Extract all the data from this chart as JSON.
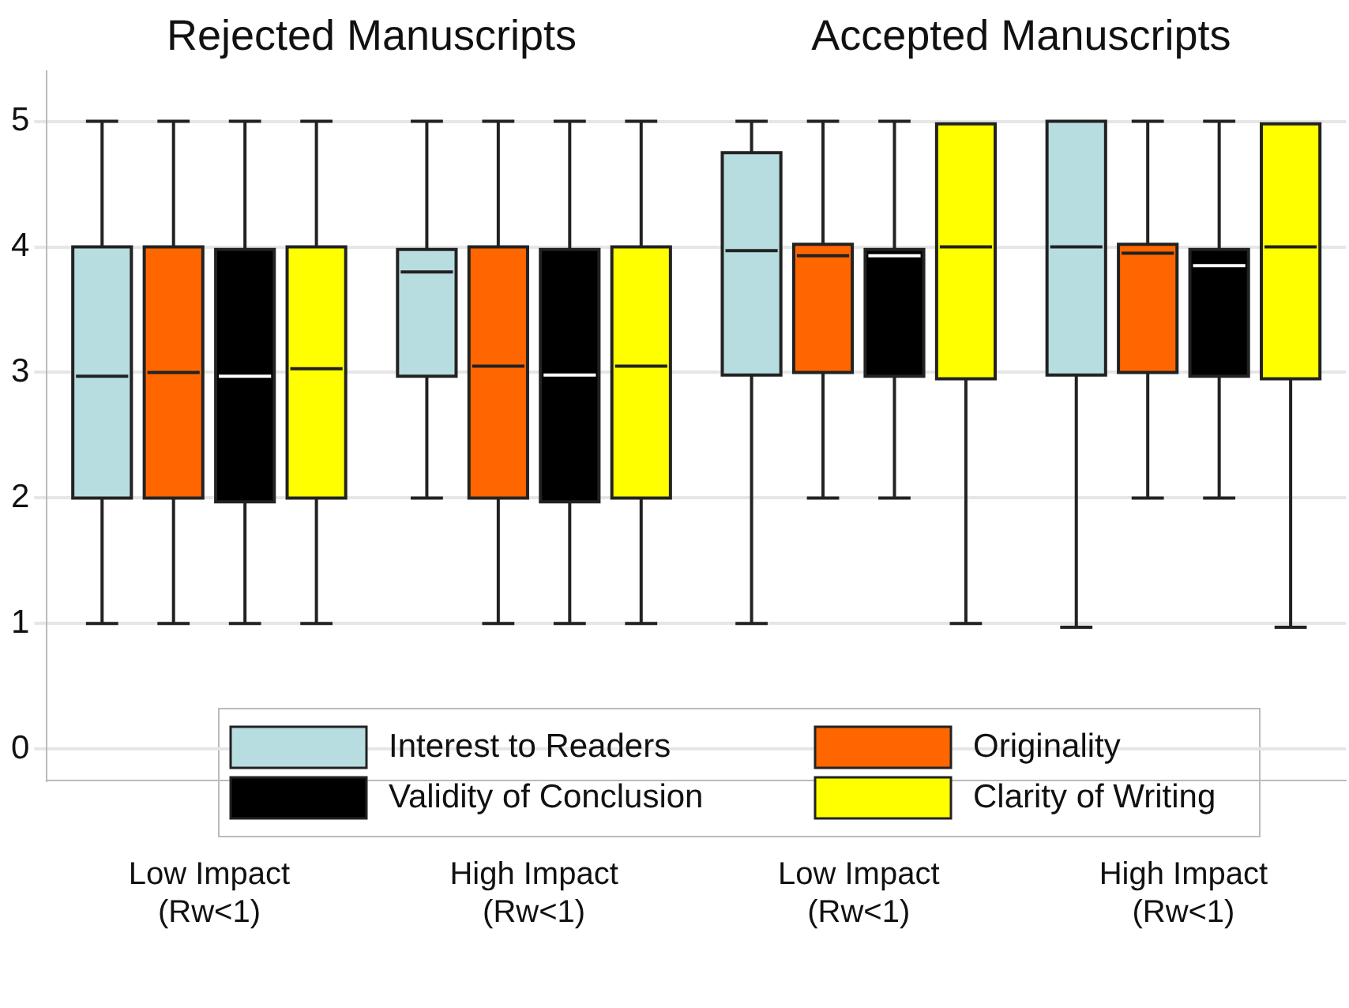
{
  "chart_data": {
    "type": "box",
    "annotations": [
      "Rejected Manuscripts",
      "Accepted Manuscripts"
    ],
    "categories": [
      "Low Impact\n(Rw<1)",
      "High Impact\n(Rw<1)",
      "Low Impact\n(Rw<1)",
      "High Impact\n(Rw<1)"
    ],
    "series": [
      {
        "name": "Interest to Readers",
        "color": "#b8dde0",
        "boxes": [
          {
            "low": 1,
            "q1": 2,
            "median": 2.97,
            "q3": 4,
            "high": 5
          },
          {
            "low": 2,
            "q1": 2.97,
            "median": 3.8,
            "q3": 3.98,
            "high": 5
          },
          {
            "low": 1,
            "q1": 2.98,
            "median": 3.97,
            "q3": 4.75,
            "high": 5
          },
          {
            "low": 0.97,
            "q1": 2.98,
            "median": 4,
            "q3": 5,
            "high": 5
          }
        ]
      },
      {
        "name": "Originality",
        "color": "#ff6600",
        "boxes": [
          {
            "low": 1,
            "q1": 2,
            "median": 3,
            "q3": 4,
            "high": 5
          },
          {
            "low": 1,
            "q1": 2,
            "median": 3.05,
            "q3": 4,
            "high": 5
          },
          {
            "low": 2,
            "q1": 3,
            "median": 3.93,
            "q3": 4.02,
            "high": 5
          },
          {
            "low": 2,
            "q1": 3,
            "median": 3.95,
            "q3": 4.02,
            "high": 5
          }
        ]
      },
      {
        "name": "Validity of Conclusion",
        "color": "#000000",
        "boxes": [
          {
            "low": 1,
            "q1": 1.97,
            "median": 2.97,
            "q3": 3.98,
            "high": 5
          },
          {
            "low": 1,
            "q1": 1.97,
            "median": 2.98,
            "q3": 3.98,
            "high": 5
          },
          {
            "low": 2,
            "q1": 2.97,
            "median": 3.93,
            "q3": 3.98,
            "high": 5
          },
          {
            "low": 2,
            "q1": 2.97,
            "median": 3.85,
            "q3": 3.98,
            "high": 5
          }
        ]
      },
      {
        "name": "Clarity of Writing",
        "color": "#ffff00",
        "boxes": [
          {
            "low": 1,
            "q1": 2,
            "median": 3.03,
            "q3": 4,
            "high": 5
          },
          {
            "low": 1,
            "q1": 2,
            "median": 3.05,
            "q3": 4,
            "high": 5
          },
          {
            "low": 1,
            "q1": 2.95,
            "median": 4,
            "q3": 4.98,
            "high": 4.98
          },
          {
            "low": 0.97,
            "q1": 2.95,
            "median": 4,
            "q3": 4.98,
            "high": 4.98
          }
        ]
      }
    ],
    "ylim": [
      -0.25,
      5.4
    ],
    "yticks": [
      0,
      1,
      2,
      3,
      4,
      5
    ],
    "grid": "y",
    "legend": "bottom"
  }
}
